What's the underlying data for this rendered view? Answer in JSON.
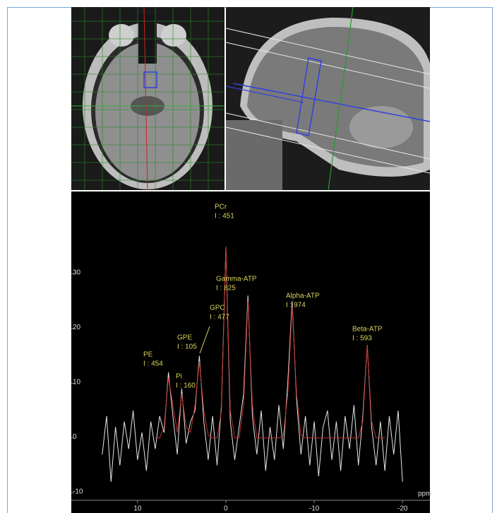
{
  "chart_data": {
    "type": "line",
    "x_label": "ppm",
    "x": [
      14,
      13.5,
      13,
      12.5,
      12,
      11.5,
      11,
      10.5,
      10,
      9.5,
      9,
      8.5,
      8,
      7.5,
      7,
      6.5,
      6,
      5.5,
      5,
      4.5,
      4,
      3.5,
      3,
      2.5,
      2,
      1.5,
      1,
      0.5,
      0,
      -0.5,
      -1,
      -1.5,
      -2,
      -2.5,
      -3,
      -3.5,
      -4,
      -4.5,
      -5,
      -5.5,
      -6,
      -6.5,
      -7,
      -7.5,
      -8,
      -8.5,
      -9,
      -9.5,
      -10,
      -10.5,
      -11,
      -11.5,
      -12,
      -12.5,
      -13,
      -13.5,
      -14,
      -14.5,
      -15,
      -15.5,
      -16,
      -16.5,
      -17,
      -17.5,
      -18,
      -18.5,
      -19,
      -19.5,
      -20
    ],
    "series": [
      {
        "color": "#e6e6e6",
        "values": [
          -3,
          4,
          -8,
          2,
          -5,
          3,
          -2,
          5,
          -4,
          1,
          -6,
          3,
          -2,
          4,
          1,
          12,
          4,
          -3,
          9,
          -1,
          3,
          5,
          15,
          3,
          -4,
          4,
          -5,
          6,
          35,
          3,
          -4,
          2,
          8,
          26,
          4,
          -3,
          5,
          -6,
          2,
          -4,
          6,
          -2,
          10,
          25,
          7,
          -3,
          4,
          -5,
          3,
          -7,
          2,
          5,
          -4,
          3,
          -6,
          4,
          -2,
          6,
          -5,
          4,
          17,
          2,
          -5,
          3,
          -6,
          4,
          -3,
          5,
          -8
        ]
      },
      {
        "color": "#c0302a",
        "values": [
          null,
          null,
          null,
          null,
          null,
          null,
          null,
          null,
          null,
          null,
          null,
          null,
          0,
          0,
          2,
          11,
          6,
          1,
          8,
          2,
          1,
          6,
          14,
          5,
          0.5,
          0,
          0,
          5,
          35,
          5,
          0,
          0,
          6,
          25,
          6,
          0,
          0,
          0,
          0,
          0,
          0,
          0.5,
          8,
          24,
          8,
          0.5,
          0,
          0,
          0,
          0,
          0,
          0,
          0,
          0,
          0,
          0,
          0,
          0,
          0,
          3,
          17,
          3,
          0,
          0,
          0,
          null,
          null,
          null,
          null
        ]
      }
    ],
    "xlim": [
      17.5,
      -23.1
    ],
    "ylim": [
      -13.7,
      45
    ],
    "xticks": [
      10,
      0,
      -10,
      -20
    ],
    "yticks": [
      30,
      20,
      10,
      0,
      -10
    ],
    "annotation_color": "#d8d45c",
    "annotations": [
      {
        "peak": "PCr",
        "label": "I : 451"
      },
      {
        "peak": "Gamma-ATP",
        "label": "I : 825"
      },
      {
        "peak": "GPC",
        "label": "I : 477"
      },
      {
        "peak": "GPE",
        "label": "I : 105"
      },
      {
        "peak": "PE",
        "label": "I : 454"
      },
      {
        "peak": "Pi",
        "label": "I : 160"
      },
      {
        "peak": "Alpha-ATP",
        "label": "I : 974"
      },
      {
        "peak": "Beta-ATP",
        "label": "I : 593"
      }
    ]
  }
}
